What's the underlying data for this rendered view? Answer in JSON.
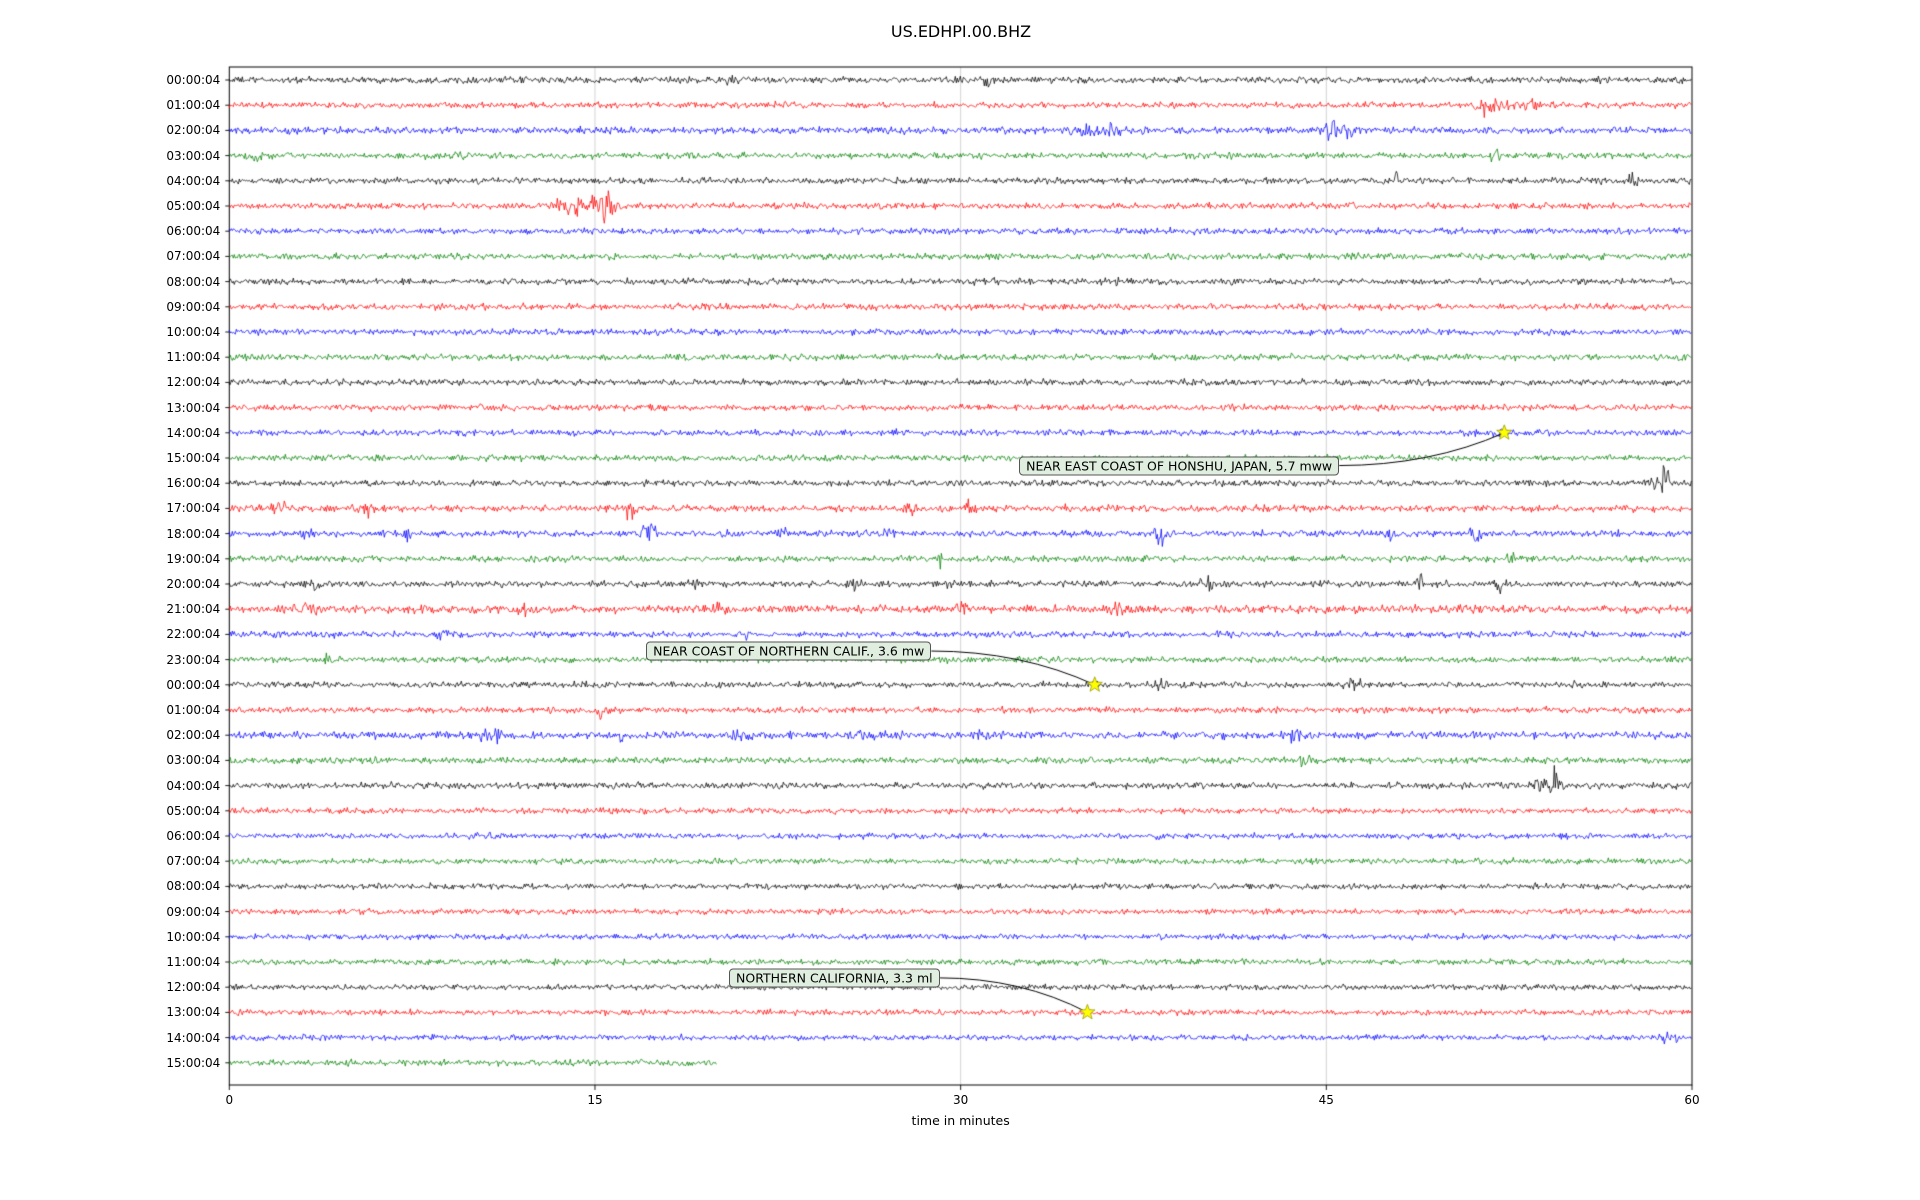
{
  "chart_data": {
    "type": "line",
    "subtype": "helicorder-dayplot",
    "title": "US.EDHPI.00.BHZ",
    "xlabel": "time in minutes",
    "x_ticks": [
      0,
      15,
      30,
      45,
      60
    ],
    "x_range": [
      0,
      60
    ],
    "grid_minutes": [
      15,
      30,
      45
    ],
    "grid_on": true,
    "marker_color": "#ffff00",
    "trace_color_cycle": {
      "black": "#000000",
      "red": "#ff0000",
      "blue": "#0000ff",
      "green": "#008000"
    },
    "rows": [
      {
        "label": "00:00:04",
        "color": "black",
        "gain": 1.05,
        "bursts": [
          [
            20.5,
            0.3,
            1.2
          ],
          [
            31.0,
            0.25,
            1.5
          ]
        ]
      },
      {
        "label": "01:00:04",
        "color": "red",
        "bursts": [
          [
            51.6,
            0.5,
            2.5
          ],
          [
            53.2,
            0.5,
            2.0
          ]
        ]
      },
      {
        "label": "02:00:04",
        "color": "blue",
        "gain": 1.1,
        "bursts": [
          [
            34.9,
            0.4,
            2.5
          ],
          [
            36.1,
            0.3,
            2.0
          ],
          [
            45.1,
            0.4,
            2.5
          ],
          [
            45.9,
            0.3,
            2.0
          ]
        ]
      },
      {
        "label": "03:00:04",
        "color": "green",
        "bursts": [
          [
            1.0,
            0.3,
            2.0
          ],
          [
            9.5,
            0.25,
            1.5
          ],
          [
            52.0,
            0.3,
            1.8
          ]
        ]
      },
      {
        "label": "04:00:04",
        "color": "black",
        "bursts": [
          [
            47.9,
            0.12,
            2.2
          ],
          [
            57.6,
            0.25,
            1.5
          ]
        ]
      },
      {
        "label": "05:00:04",
        "color": "red",
        "bursts": [
          [
            14.4,
            0.9,
            2.5
          ],
          [
            15.4,
            0.35,
            5.0
          ]
        ]
      },
      {
        "label": "06:00:04",
        "color": "blue",
        "bursts": []
      },
      {
        "label": "07:00:04",
        "color": "green",
        "bursts": []
      },
      {
        "label": "08:00:04",
        "color": "black",
        "bursts": [
          [
            36.2,
            0.3,
            0.8
          ]
        ]
      },
      {
        "label": "09:00:04",
        "color": "red",
        "bursts": []
      },
      {
        "label": "10:00:04",
        "color": "blue",
        "bursts": []
      },
      {
        "label": "11:00:04",
        "color": "green",
        "bursts": []
      },
      {
        "label": "12:00:04",
        "color": "black",
        "bursts": []
      },
      {
        "label": "13:00:04",
        "color": "red",
        "bursts": []
      },
      {
        "label": "14:00:04",
        "color": "blue",
        "bursts": [
          [
            52.3,
            0.3,
            0.8
          ]
        ]
      },
      {
        "label": "15:00:04",
        "color": "green",
        "bursts": []
      },
      {
        "label": "16:00:04",
        "color": "black",
        "bursts": [
          [
            58.5,
            0.3,
            2.0
          ],
          [
            58.9,
            0.15,
            6.0
          ]
        ]
      },
      {
        "label": "17:00:04",
        "color": "red",
        "gain": 1.1,
        "bursts": [
          [
            2.1,
            0.25,
            1.5
          ],
          [
            5.6,
            0.25,
            2.5
          ],
          [
            16.4,
            0.3,
            3.0
          ],
          [
            27.9,
            0.25,
            2.5
          ],
          [
            30.4,
            0.25,
            2.5
          ]
        ]
      },
      {
        "label": "18:00:04",
        "color": "blue",
        "gain": 1.05,
        "bursts": [
          [
            3.1,
            0.3,
            2.2
          ],
          [
            7.2,
            0.25,
            1.8
          ],
          [
            17.2,
            0.3,
            2.2
          ],
          [
            22.6,
            0.3,
            2.2
          ],
          [
            27.1,
            0.25,
            1.8
          ],
          [
            38.2,
            0.3,
            2.2
          ],
          [
            47.6,
            0.25,
            1.8
          ],
          [
            51.2,
            0.3,
            2.2
          ]
        ]
      },
      {
        "label": "19:00:04",
        "color": "green",
        "bursts": [
          [
            29.1,
            0.15,
            1.8
          ],
          [
            52.6,
            0.15,
            2.5
          ]
        ]
      },
      {
        "label": "20:00:04",
        "color": "black",
        "bursts": [
          [
            3.6,
            0.3,
            1.8
          ],
          [
            19.1,
            0.3,
            2.2
          ],
          [
            25.6,
            0.25,
            2.2
          ],
          [
            29.6,
            0.15,
            1.8
          ],
          [
            40.1,
            0.25,
            1.8
          ],
          [
            48.9,
            0.15,
            3.5
          ],
          [
            52.1,
            0.25,
            1.8
          ]
        ]
      },
      {
        "label": "21:00:04",
        "color": "red",
        "gain": 1.3,
        "bursts": [
          [
            3.1,
            0.4,
            1.2
          ],
          [
            12.1,
            0.3,
            1.2
          ],
          [
            20.1,
            0.4,
            1.2
          ],
          [
            30.1,
            0.3,
            1.2
          ],
          [
            36.6,
            0.4,
            1.2
          ]
        ]
      },
      {
        "label": "22:00:04",
        "color": "blue",
        "bursts": [
          [
            8.7,
            0.25,
            1.8
          ],
          [
            21.2,
            0.15,
            1.2
          ]
        ]
      },
      {
        "label": "23:00:04",
        "color": "green",
        "bursts": [
          [
            4.1,
            0.15,
            1.8
          ]
        ]
      },
      {
        "label": "00:00:04",
        "color": "black",
        "bursts": [
          [
            35.5,
            0.2,
            0.8
          ],
          [
            38.1,
            0.3,
            1.5
          ],
          [
            46.1,
            0.4,
            1.8
          ],
          [
            55.2,
            0.25,
            1.2
          ]
        ]
      },
      {
        "label": "01:00:04",
        "color": "red",
        "bursts": [
          [
            15.2,
            0.08,
            6.5
          ],
          [
            57.6,
            0.3,
            1.8
          ]
        ]
      },
      {
        "label": "02:00:04",
        "color": "blue",
        "gain": 1.2,
        "bursts": [
          [
            10.6,
            0.8,
            1.2
          ],
          [
            16.1,
            0.06,
            9.0
          ],
          [
            21.1,
            0.4,
            1.2
          ],
          [
            26.1,
            0.3,
            1.2
          ],
          [
            31.1,
            0.4,
            1.2
          ],
          [
            43.6,
            0.3,
            1.5
          ]
        ]
      },
      {
        "label": "03:00:04",
        "color": "green",
        "bursts": [
          [
            44.1,
            0.3,
            1.5
          ]
        ]
      },
      {
        "label": "04:00:04",
        "color": "black",
        "bursts": [
          [
            53.6,
            0.5,
            2.0
          ],
          [
            54.4,
            0.25,
            4.5
          ]
        ]
      },
      {
        "label": "05:00:04",
        "color": "red",
        "gain": 0.9,
        "bursts": []
      },
      {
        "label": "06:00:04",
        "color": "blue",
        "gain": 0.9,
        "bursts": []
      },
      {
        "label": "07:00:04",
        "color": "green",
        "gain": 0.9,
        "bursts": []
      },
      {
        "label": "08:00:04",
        "color": "black",
        "gain": 0.9,
        "bursts": []
      },
      {
        "label": "09:00:04",
        "color": "red",
        "gain": 0.9,
        "bursts": []
      },
      {
        "label": "10:00:04",
        "color": "blue",
        "gain": 0.9,
        "bursts": []
      },
      {
        "label": "11:00:04",
        "color": "green",
        "gain": 0.9,
        "bursts": []
      },
      {
        "label": "12:00:04",
        "color": "black",
        "gain": 0.9,
        "bursts": []
      },
      {
        "label": "13:00:04",
        "color": "red",
        "gain": 0.9,
        "bursts": [
          [
            35.2,
            0.15,
            0.8
          ]
        ]
      },
      {
        "label": "14:00:04",
        "color": "blue",
        "gain": 0.9,
        "bursts": [
          [
            59.2,
            0.35,
            2.0
          ]
        ]
      },
      {
        "label": "15:00:04",
        "color": "green",
        "end": 20,
        "bursts": []
      }
    ],
    "events": [
      {
        "text": "NEAR EAST COAST OF HONSHU, JAPAN, 5.7 mww",
        "star_row": 14,
        "star_minute": 52.3,
        "box_left_minute": 32.4,
        "box_row": 15.3
      },
      {
        "text": "NEAR COAST OF NORTHERN CALIF., 3.6 mw",
        "star_row": 24,
        "star_minute": 35.5,
        "box_left_minute": 17.1,
        "box_row": 22.66
      },
      {
        "text": "NORTHERN CALIFORNIA, 3.3 ml",
        "star_row": 37,
        "star_minute": 35.2,
        "box_left_minute": 20.5,
        "box_row": 35.63
      }
    ]
  }
}
